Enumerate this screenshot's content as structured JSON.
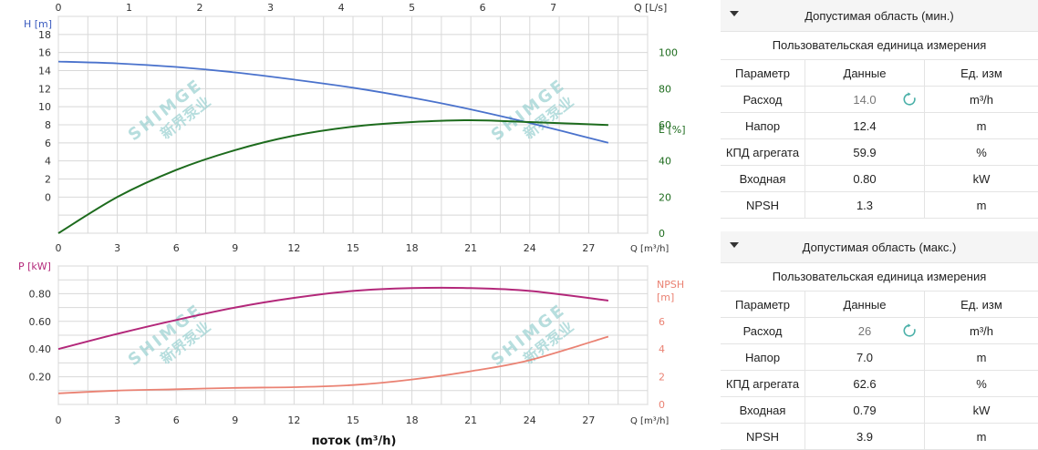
{
  "colors": {
    "h_curve": "#4a72cc",
    "e_curve": "#1d6b1d",
    "p_curve": "#b3287a",
    "npsh_curve": "#ea8273",
    "grid": "#d8d8d8",
    "axis_text": "#333333",
    "h_axis": "#3a5bbf",
    "e_axis": "#1d6b1d",
    "p_axis": "#b3287a",
    "npsh_axis": "#ea8273",
    "watermark": "#9fd3d3",
    "refresh_icon": "#4ab0a8"
  },
  "watermark": {
    "brand": "SHIMGE",
    "chinese": "新界泵业"
  },
  "top_chart": {
    "q_ls_label": "Q [L/s]",
    "q_ls_ticks": [
      "0",
      "1",
      "2",
      "3",
      "4",
      "5",
      "6",
      "7"
    ],
    "h_label": "H [m]",
    "h_ticks": [
      "0",
      "2",
      "4",
      "6",
      "8",
      "10",
      "12",
      "14",
      "16",
      "18"
    ],
    "e_label": "E [%]",
    "e_ticks": [
      "0",
      "20",
      "40",
      "60",
      "80",
      "100"
    ],
    "q_label": "Q [m³/h]",
    "q_ticks": [
      "0",
      "3",
      "6",
      "9",
      "12",
      "15",
      "18",
      "21",
      "24",
      "27"
    ]
  },
  "bottom_chart": {
    "p_label": "P [kW]",
    "p_ticks": [
      "0.20",
      "0.40",
      "0.60",
      "0.80"
    ],
    "npsh_label_1": "NPSH",
    "npsh_label_2": "[m]",
    "npsh_ticks": [
      "0",
      "2",
      "4",
      "6"
    ],
    "q_label": "Q [m³/h]",
    "q_ticks": [
      "0",
      "3",
      "6",
      "9",
      "12",
      "15",
      "18",
      "21",
      "24",
      "27"
    ],
    "x_title": "поток (m³/h)"
  },
  "chart_data": [
    {
      "type": "line",
      "x": [
        0,
        3,
        6,
        9,
        12,
        15,
        18,
        21,
        24,
        28
      ],
      "xlim": [
        0,
        30
      ],
      "series": [
        {
          "name": "H [m]",
          "axis": "left",
          "ylim": [
            -4,
            20
          ],
          "values": [
            15.0,
            14.8,
            14.4,
            13.8,
            13.0,
            12.1,
            11.0,
            9.7,
            8.2,
            6.0
          ]
        },
        {
          "name": "E [%]",
          "axis": "right",
          "ylim": [
            0,
            120
          ],
          "values": [
            0,
            20,
            35,
            46,
            54,
            59,
            61.5,
            62.5,
            61.5,
            59.9
          ]
        }
      ],
      "top_axis": {
        "label": "Q [L/s]",
        "range": [
          0,
          8.33
        ]
      },
      "grid": true
    },
    {
      "type": "line",
      "x": [
        0,
        3,
        6,
        9,
        12,
        15,
        18,
        21,
        24,
        28
      ],
      "xlim": [
        0,
        30
      ],
      "series": [
        {
          "name": "P [kW]",
          "axis": "left",
          "ylim": [
            0,
            1.0
          ],
          "values": [
            0.4,
            0.51,
            0.61,
            0.7,
            0.77,
            0.82,
            0.84,
            0.84,
            0.82,
            0.75
          ]
        },
        {
          "name": "NPSH [m]",
          "axis": "right",
          "ylim": [
            0,
            10
          ],
          "values": [
            0.8,
            1.0,
            1.1,
            1.2,
            1.25,
            1.4,
            1.8,
            2.4,
            3.2,
            4.9
          ]
        }
      ],
      "xlabel": "поток (m³/h)",
      "grid": true
    }
  ],
  "panels": [
    {
      "title": "Допустимая область (мин.)",
      "unit_line": "Пользовательская единица измерения",
      "headers": {
        "param": "Параметр",
        "data": "Данные",
        "unit": "Ед. изм"
      },
      "rows": [
        {
          "param": "Расход",
          "value": "14.0",
          "unit": "m³/h"
        },
        {
          "param": "Напор",
          "value": "12.4",
          "unit": "m"
        },
        {
          "param": "КПД агрегата",
          "value": "59.9",
          "unit": "%"
        },
        {
          "param": "Входная",
          "value": "0.80",
          "unit": "kW"
        },
        {
          "param": "NPSH",
          "value": "1.3",
          "unit": "m"
        }
      ]
    },
    {
      "title": "Допустимая область (макс.)",
      "unit_line": "Пользовательская единица измерения",
      "headers": {
        "param": "Параметр",
        "data": "Данные",
        "unit": "Ед. изм"
      },
      "rows": [
        {
          "param": "Расход",
          "value": "26",
          "unit": "m³/h"
        },
        {
          "param": "Напор",
          "value": "7.0",
          "unit": "m"
        },
        {
          "param": "КПД агрегата",
          "value": "62.6",
          "unit": "%"
        },
        {
          "param": "Входная",
          "value": "0.79",
          "unit": "kW"
        },
        {
          "param": "NPSH",
          "value": "3.9",
          "unit": "m"
        }
      ]
    }
  ]
}
